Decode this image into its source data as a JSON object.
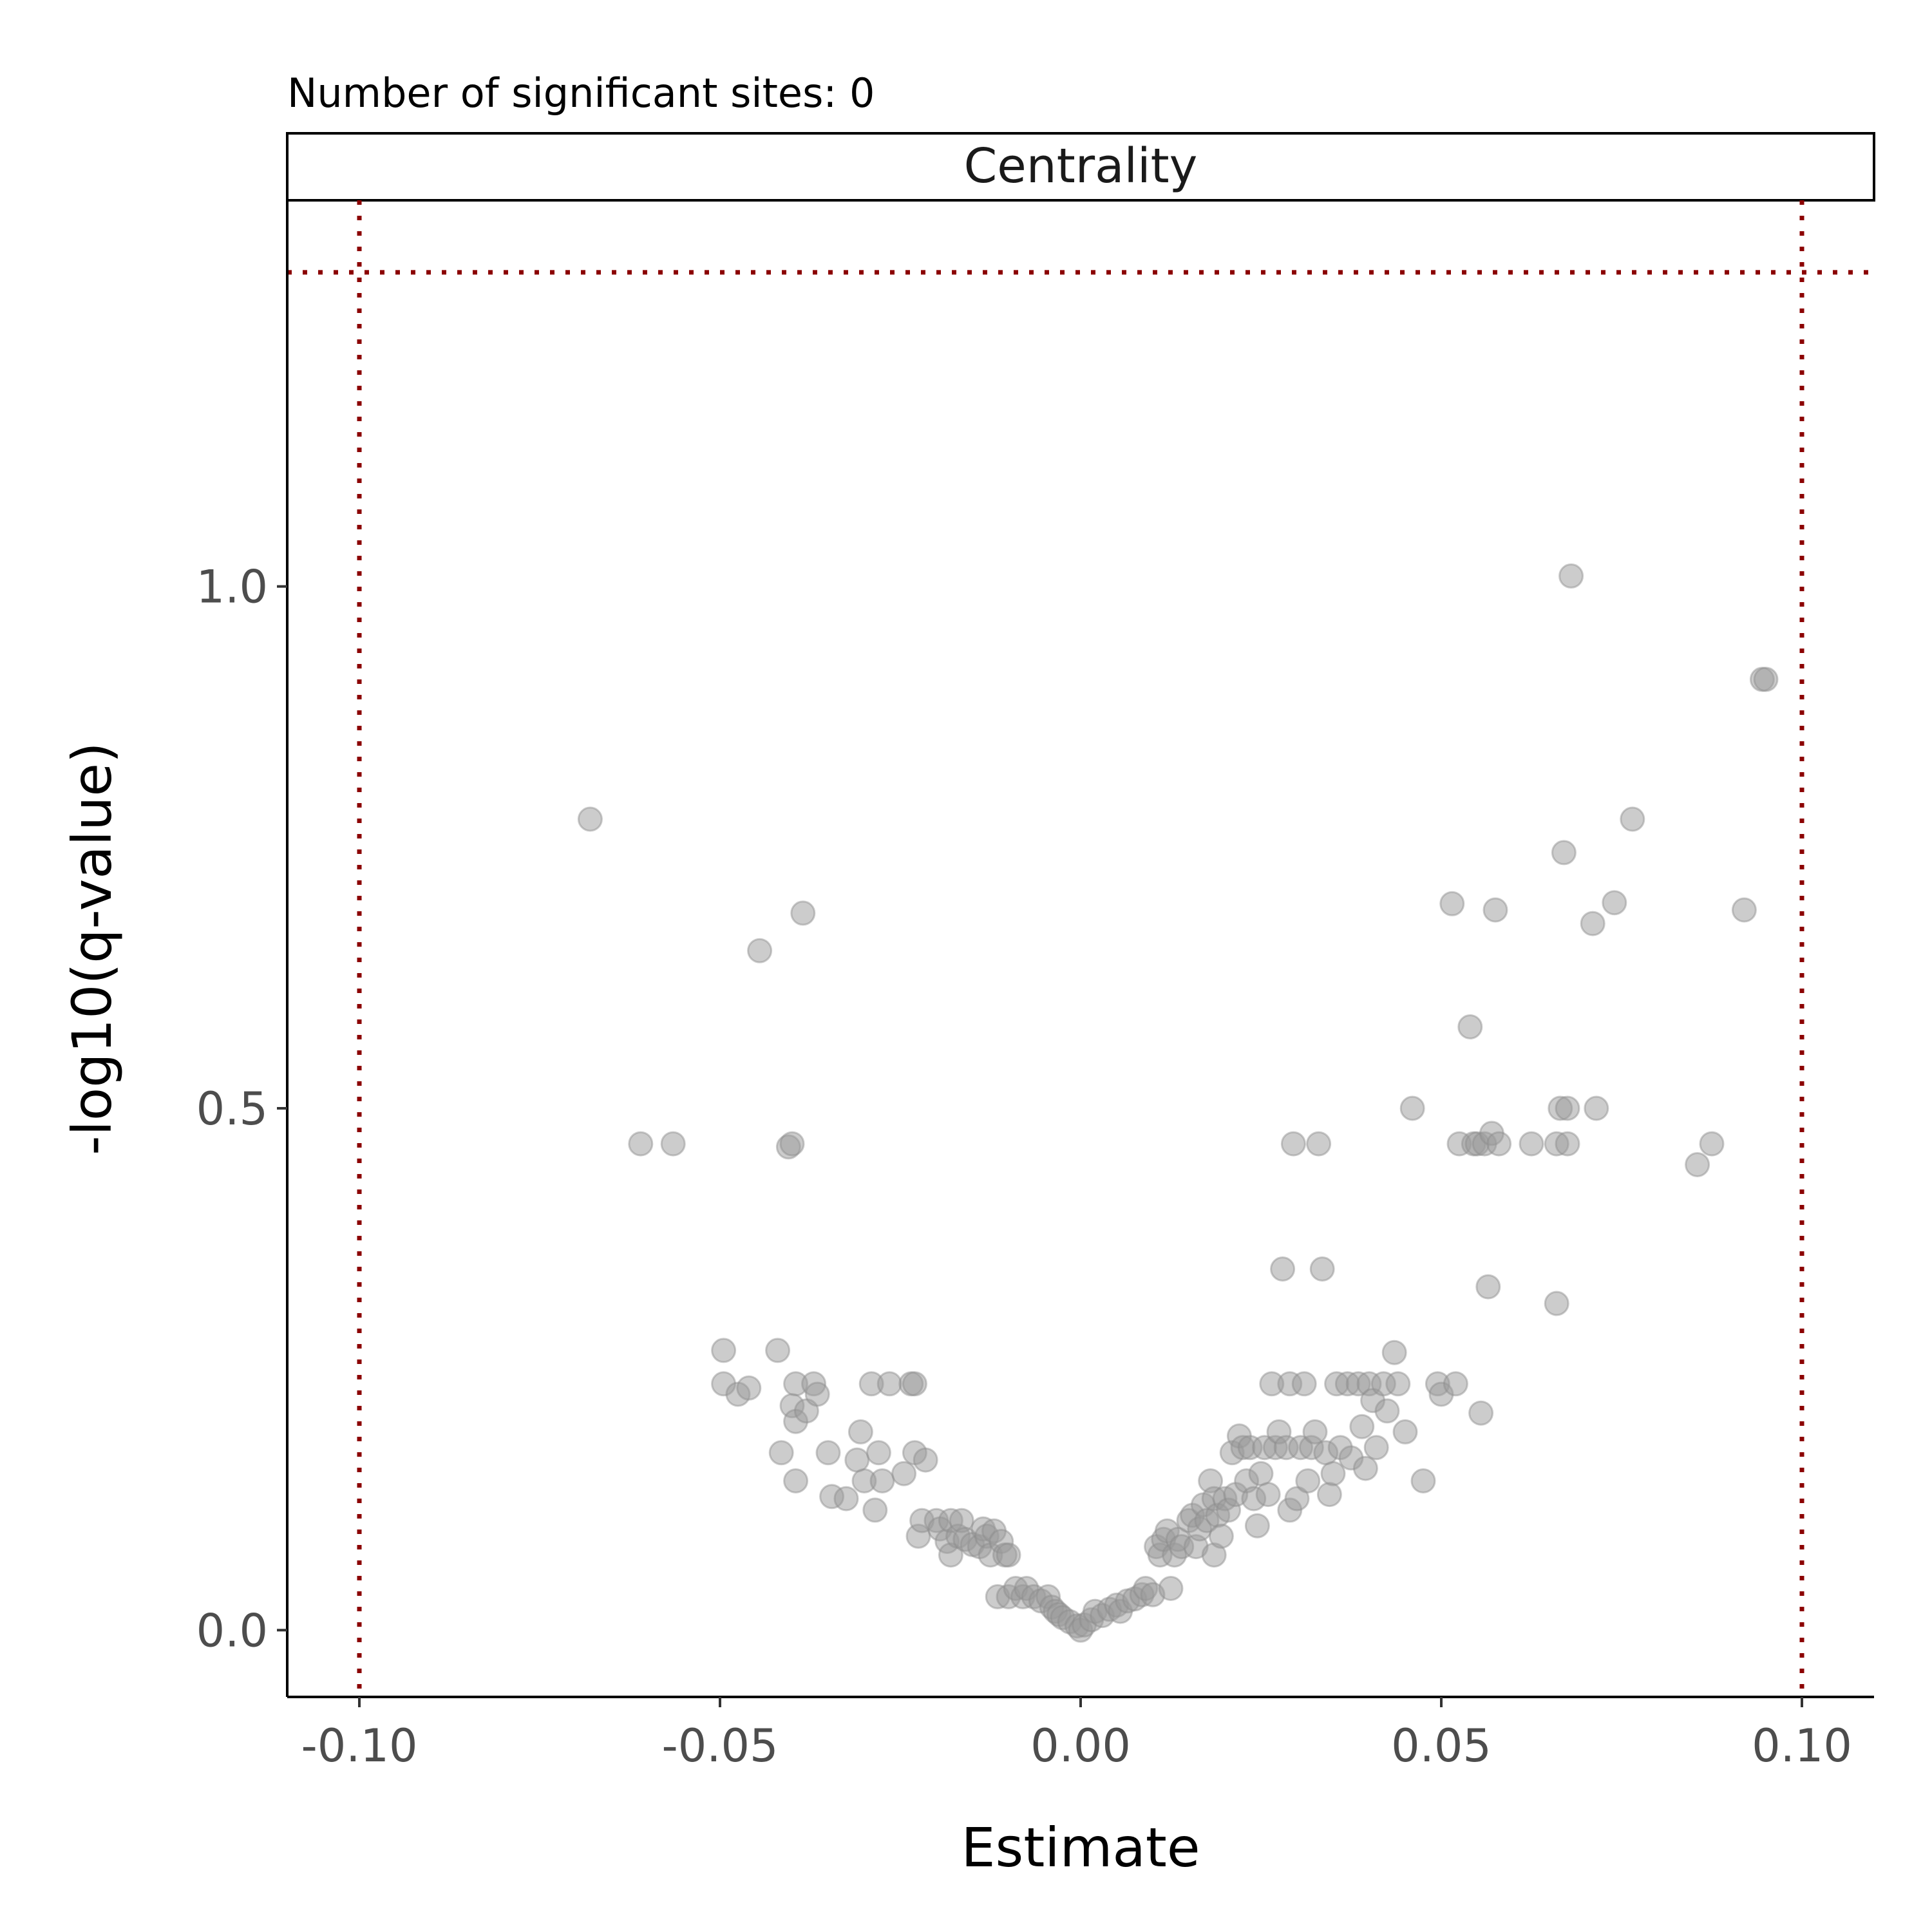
{
  "chart_data": {
    "type": "scatter",
    "subtitle": "Number of significant sites: 0",
    "facet_label": "Centrality",
    "xlabel": "Estimate",
    "ylabel": "-log10(q-value)",
    "xlim": [
      -0.11,
      0.11
    ],
    "ylim": [
      -0.064,
      1.37
    ],
    "x_ticks": [
      -0.1,
      -0.05,
      0.0,
      0.05,
      0.1
    ],
    "x_tick_labels": [
      "-0.10",
      "-0.05",
      "0.00",
      "0.05",
      "0.10"
    ],
    "y_ticks": [
      0.0,
      0.5,
      1.0
    ],
    "y_tick_labels": [
      "0.0",
      "0.5",
      "1.0"
    ],
    "threshold_lines": {
      "vertical_x": [
        -0.1,
        0.1
      ],
      "horizontal_y": [
        1.301
      ],
      "color": "#8B0000",
      "style": "dotted"
    },
    "point_color": "#999999",
    "grid": false,
    "series": [
      {
        "points": [
          [
            -0.068,
            0.777
          ],
          [
            -0.061,
            0.466
          ],
          [
            -0.0565,
            0.466
          ],
          [
            -0.0445,
            0.651
          ],
          [
            -0.0385,
            0.687
          ],
          [
            -0.0405,
            0.463
          ],
          [
            -0.04,
            0.466
          ],
          [
            -0.0495,
            0.268
          ],
          [
            -0.0495,
            0.236
          ],
          [
            -0.0475,
            0.226
          ],
          [
            -0.046,
            0.232
          ],
          [
            -0.042,
            0.268
          ],
          [
            -0.0395,
            0.236
          ],
          [
            -0.04,
            0.215
          ],
          [
            -0.0395,
            0.2
          ],
          [
            -0.037,
            0.236
          ],
          [
            -0.038,
            0.21
          ],
          [
            -0.0365,
            0.226
          ],
          [
            -0.0415,
            0.17
          ],
          [
            -0.0395,
            0.143
          ],
          [
            -0.035,
            0.17
          ],
          [
            -0.0345,
            0.128
          ],
          [
            -0.0325,
            0.126
          ],
          [
            -0.031,
            0.163
          ],
          [
            -0.0305,
            0.19
          ],
          [
            -0.03,
            0.143
          ],
          [
            -0.029,
            0.236
          ],
          [
            -0.0285,
            0.115
          ],
          [
            -0.028,
            0.17
          ],
          [
            -0.0275,
            0.143
          ],
          [
            -0.0265,
            0.236
          ],
          [
            -0.0245,
            0.15
          ],
          [
            -0.0235,
            0.236
          ],
          [
            -0.023,
            0.236
          ],
          [
            -0.023,
            0.17
          ],
          [
            -0.0225,
            0.09
          ],
          [
            -0.022,
            0.105
          ],
          [
            -0.0215,
            0.163
          ],
          [
            -0.02,
            0.105
          ],
          [
            -0.0195,
            0.097
          ],
          [
            -0.0185,
            0.085
          ],
          [
            -0.018,
            0.105
          ],
          [
            -0.018,
            0.072
          ],
          [
            -0.017,
            0.09
          ],
          [
            -0.0165,
            0.105
          ],
          [
            -0.016,
            0.087
          ],
          [
            -0.015,
            0.082
          ],
          [
            -0.014,
            0.08
          ],
          [
            -0.0135,
            0.097
          ],
          [
            -0.013,
            0.09
          ],
          [
            -0.0125,
            0.072
          ],
          [
            -0.012,
            0.095
          ],
          [
            -0.011,
            0.085
          ],
          [
            -0.0105,
            0.072
          ],
          [
            -0.01,
            0.072
          ],
          [
            -0.0115,
            0.032
          ],
          [
            -0.01,
            0.032
          ],
          [
            -0.009,
            0.04
          ],
          [
            -0.008,
            0.032
          ],
          [
            -0.0075,
            0.04
          ],
          [
            -0.0065,
            0.032
          ],
          [
            -0.0055,
            0.028
          ],
          [
            -0.0045,
            0.032
          ],
          [
            -0.004,
            0.022
          ],
          [
            -0.0035,
            0.018
          ],
          [
            -0.003,
            0.015
          ],
          [
            -0.0025,
            0.012
          ],
          [
            -0.0015,
            0.008
          ],
          [
            -0.0005,
            0.004
          ],
          [
            0.0,
            0.0
          ],
          [
            0.0005,
            0.005
          ],
          [
            0.0015,
            0.01
          ],
          [
            0.002,
            0.018
          ],
          [
            0.003,
            0.014
          ],
          [
            0.004,
            0.02
          ],
          [
            0.005,
            0.024
          ],
          [
            0.0055,
            0.018
          ],
          [
            0.0065,
            0.028
          ],
          [
            0.0075,
            0.03
          ],
          [
            0.0085,
            0.034
          ],
          [
            0.009,
            0.04
          ],
          [
            0.01,
            0.034
          ],
          [
            0.0105,
            0.08
          ],
          [
            0.011,
            0.072
          ],
          [
            0.0115,
            0.087
          ],
          [
            0.012,
            0.095
          ],
          [
            0.0125,
            0.04
          ],
          [
            0.013,
            0.072
          ],
          [
            0.0135,
            0.087
          ],
          [
            0.014,
            0.08
          ],
          [
            0.015,
            0.105
          ],
          [
            0.0155,
            0.11
          ],
          [
            0.016,
            0.08
          ],
          [
            0.0165,
            0.097
          ],
          [
            0.017,
            0.12
          ],
          [
            0.0175,
            0.105
          ],
          [
            0.018,
            0.143
          ],
          [
            0.0185,
            0.126
          ],
          [
            0.0185,
            0.072
          ],
          [
            0.019,
            0.11
          ],
          [
            0.0195,
            0.09
          ],
          [
            0.02,
            0.126
          ],
          [
            0.0205,
            0.115
          ],
          [
            0.021,
            0.17
          ],
          [
            0.0215,
            0.13
          ],
          [
            0.022,
            0.186
          ],
          [
            0.0225,
            0.175
          ],
          [
            0.023,
            0.143
          ],
          [
            0.0235,
            0.175
          ],
          [
            0.024,
            0.126
          ],
          [
            0.0245,
            0.1
          ],
          [
            0.025,
            0.15
          ],
          [
            0.0255,
            0.175
          ],
          [
            0.026,
            0.13
          ],
          [
            0.0265,
            0.236
          ],
          [
            0.027,
            0.175
          ],
          [
            0.0275,
            0.19
          ],
          [
            0.028,
            0.346
          ],
          [
            0.0285,
            0.175
          ],
          [
            0.029,
            0.236
          ],
          [
            0.029,
            0.115
          ],
          [
            0.0295,
            0.466
          ],
          [
            0.03,
            0.126
          ],
          [
            0.0305,
            0.175
          ],
          [
            0.031,
            0.236
          ],
          [
            0.0315,
            0.143
          ],
          [
            0.032,
            0.175
          ],
          [
            0.0325,
            0.19
          ],
          [
            0.033,
            0.466
          ],
          [
            0.0335,
            0.346
          ],
          [
            0.034,
            0.17
          ],
          [
            0.0345,
            0.13
          ],
          [
            0.035,
            0.15
          ],
          [
            0.0355,
            0.236
          ],
          [
            0.036,
            0.175
          ],
          [
            0.037,
            0.236
          ],
          [
            0.0375,
            0.165
          ],
          [
            0.0385,
            0.236
          ],
          [
            0.039,
            0.195
          ],
          [
            0.0395,
            0.155
          ],
          [
            0.04,
            0.236
          ],
          [
            0.0405,
            0.22
          ],
          [
            0.041,
            0.175
          ],
          [
            0.042,
            0.236
          ],
          [
            0.0425,
            0.21
          ],
          [
            0.0435,
            0.266
          ],
          [
            0.044,
            0.236
          ],
          [
            0.045,
            0.19
          ],
          [
            0.046,
            0.5
          ],
          [
            0.0475,
            0.143
          ],
          [
            0.0495,
            0.236
          ],
          [
            0.05,
            0.226
          ],
          [
            0.0515,
            0.696
          ],
          [
            0.052,
            0.236
          ],
          [
            0.0525,
            0.466
          ],
          [
            0.054,
            0.578
          ],
          [
            0.0545,
            0.466
          ],
          [
            0.055,
            0.466
          ],
          [
            0.0555,
            0.208
          ],
          [
            0.056,
            0.466
          ],
          [
            0.0565,
            0.329
          ],
          [
            0.057,
            0.476
          ],
          [
            0.058,
            0.466
          ],
          [
            0.0575,
            0.69
          ],
          [
            0.0625,
            0.466
          ],
          [
            0.066,
            0.313
          ],
          [
            0.066,
            0.466
          ],
          [
            0.0665,
            0.5
          ],
          [
            0.0675,
            0.5
          ],
          [
            0.0675,
            0.466
          ],
          [
            0.067,
            0.745
          ],
          [
            0.068,
            1.01
          ],
          [
            0.071,
            0.677
          ],
          [
            0.0715,
            0.5
          ],
          [
            0.074,
            0.697
          ],
          [
            0.0765,
            0.777
          ],
          [
            0.0855,
            0.446
          ],
          [
            0.0875,
            0.466
          ],
          [
            0.092,
            0.69
          ],
          [
            0.0945,
            0.911
          ],
          [
            0.095,
            0.911
          ]
        ]
      }
    ]
  }
}
